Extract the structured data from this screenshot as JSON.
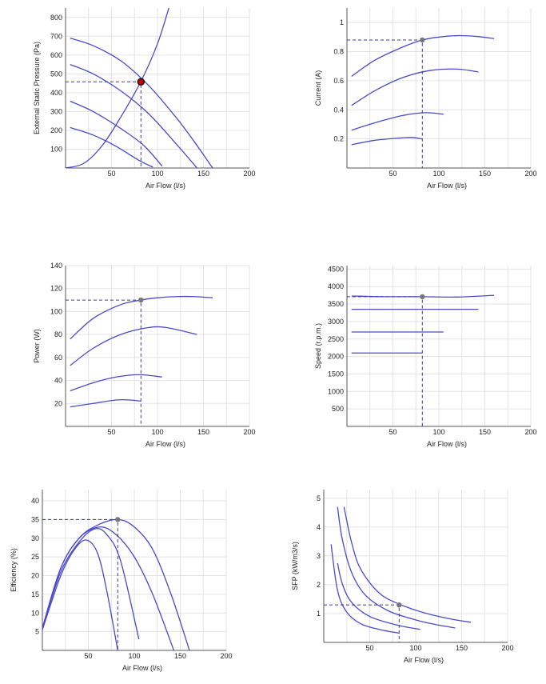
{
  "chart_data": [
    {
      "type": "line",
      "xlabel": "Air Flow (l/s)",
      "ylabel": "External Static Pressure (Pa)",
      "xticks": [
        50,
        100,
        150,
        200
      ],
      "yticks": [
        100,
        200,
        300,
        400,
        500,
        600,
        700,
        800
      ],
      "xlim": [
        0,
        200
      ],
      "ylim": [
        0,
        850
      ],
      "series": [
        {
          "x": [
            5,
            30,
            60,
            90,
            120,
            140,
            160
          ],
          "y": [
            690,
            650,
            570,
            440,
            270,
            140,
            0
          ]
        },
        {
          "x": [
            5,
            30,
            60,
            90,
            120,
            143
          ],
          "y": [
            550,
            500,
            410,
            290,
            130,
            0
          ]
        },
        {
          "x": [
            5,
            30,
            60,
            85,
            105
          ],
          "y": [
            355,
            300,
            210,
            120,
            10
          ]
        },
        {
          "x": [
            5,
            30,
            55,
            80,
            95
          ],
          "y": [
            215,
            175,
            115,
            40,
            5
          ]
        },
        {
          "x": [
            0,
            20,
            40,
            60,
            82,
            100,
            113
          ],
          "y": [
            0,
            25,
            120,
            270,
            460,
            660,
            860
          ]
        }
      ],
      "operating_point": {
        "x": 82,
        "y": 458
      },
      "marker_color": "#cc0000"
    },
    {
      "type": "line",
      "xlabel": "Air Flow (l/s)",
      "ylabel": "Current (A)",
      "xticks": [
        50,
        100,
        150,
        200
      ],
      "yticks": [
        0.2,
        0.4,
        0.6,
        0.8,
        1
      ],
      "xlim": [
        0,
        200
      ],
      "ylim": [
        0,
        1.1
      ],
      "series": [
        {
          "x": [
            5,
            30,
            60,
            82,
            100,
            120,
            140,
            160
          ],
          "y": [
            0.63,
            0.74,
            0.83,
            0.88,
            0.9,
            0.91,
            0.905,
            0.89
          ]
        },
        {
          "x": [
            5,
            30,
            60,
            90,
            120,
            143
          ],
          "y": [
            0.43,
            0.53,
            0.62,
            0.67,
            0.68,
            0.66
          ]
        },
        {
          "x": [
            5,
            30,
            60,
            85,
            105
          ],
          "y": [
            0.26,
            0.31,
            0.36,
            0.38,
            0.37
          ]
        },
        {
          "x": [
            5,
            30,
            55,
            70,
            82
          ],
          "y": [
            0.16,
            0.19,
            0.205,
            0.21,
            0.2
          ]
        }
      ],
      "operating_point": {
        "x": 82,
        "y": 0.88
      },
      "marker_color": "#777777"
    },
    {
      "type": "line",
      "xlabel": "Air Flow (l/s)",
      "ylabel": "Power (W)",
      "xticks": [
        50,
        100,
        150,
        200
      ],
      "yticks": [
        20,
        40,
        60,
        80,
        100,
        120,
        140
      ],
      "xlim": [
        0,
        200
      ],
      "ylim": [
        0,
        140
      ],
      "series": [
        {
          "x": [
            5,
            30,
            60,
            82,
            100,
            120,
            140,
            160
          ],
          "y": [
            76,
            94,
            106,
            110,
            112,
            113,
            113,
            112
          ]
        },
        {
          "x": [
            5,
            30,
            60,
            90,
            110,
            143
          ],
          "y": [
            53,
            68,
            80,
            86,
            86,
            80
          ]
        },
        {
          "x": [
            5,
            30,
            55,
            80,
            105
          ],
          "y": [
            31,
            38,
            43,
            45,
            43
          ]
        },
        {
          "x": [
            5,
            30,
            55,
            70,
            82
          ],
          "y": [
            17,
            20,
            23,
            23,
            22
          ]
        }
      ],
      "operating_point": {
        "x": 82,
        "y": 110
      },
      "marker_color": "#777777"
    },
    {
      "type": "line",
      "xlabel": "Air Flow (l/s)",
      "ylabel": "Speed (r.p.m.)",
      "xticks": [
        50,
        100,
        150,
        200
      ],
      "yticks": [
        500,
        1000,
        1500,
        2000,
        2500,
        3000,
        3500,
        4000,
        4500
      ],
      "xlim": [
        0,
        200
      ],
      "ylim": [
        0,
        4600
      ],
      "series": [
        {
          "x": [
            5,
            40,
            82,
            120,
            160
          ],
          "y": [
            3730,
            3710,
            3710,
            3700,
            3750
          ]
        },
        {
          "x": [
            5,
            143
          ],
          "y": [
            3350,
            3350
          ]
        },
        {
          "x": [
            5,
            105
          ],
          "y": [
            2700,
            2700
          ]
        },
        {
          "x": [
            5,
            82
          ],
          "y": [
            2100,
            2100
          ]
        }
      ],
      "operating_point": {
        "x": 82,
        "y": 3710
      },
      "marker_color": "#777777"
    },
    {
      "type": "line",
      "xlabel": "Air Flow (l/s)",
      "ylabel": "Efficiency (%)",
      "xticks": [
        50,
        100,
        150,
        200
      ],
      "yticks": [
        5,
        10,
        15,
        20,
        25,
        30,
        35,
        40
      ],
      "xlim": [
        0,
        200
      ],
      "ylim": [
        0,
        43
      ],
      "series": [
        {
          "x": [
            0,
            20,
            40,
            60,
            82,
            100,
            120,
            140,
            160
          ],
          "y": [
            6,
            22,
            30,
            33.5,
            35,
            33,
            27,
            15,
            0
          ]
        },
        {
          "x": [
            0,
            20,
            40,
            62,
            80,
            100,
            120,
            143
          ],
          "y": [
            6,
            22,
            30,
            33,
            31,
            25,
            15,
            0
          ]
        },
        {
          "x": [
            0,
            20,
            40,
            57,
            70,
            85,
            105
          ],
          "y": [
            6,
            21,
            29,
            32.5,
            31,
            24,
            3
          ]
        },
        {
          "x": [
            0,
            20,
            35,
            48,
            60,
            70,
            82
          ],
          "y": [
            5.5,
            20,
            27,
            29.5,
            26,
            16,
            0
          ]
        }
      ],
      "operating_point": {
        "x": 82,
        "y": 35
      },
      "marker_color": "#777777"
    },
    {
      "type": "line",
      "xlabel": "Air Flow (l/s)",
      "ylabel": "SFP (kW/m3/s)",
      "xticks": [
        50,
        100,
        150,
        200
      ],
      "yticks": [
        1,
        2,
        3,
        4,
        5
      ],
      "xlim": [
        0,
        200
      ],
      "ylim": [
        0,
        5.3
      ],
      "series": [
        {
          "x": [
            22,
            30,
            40,
            60,
            82,
            110,
            140,
            160
          ],
          "y": [
            4.7,
            3.5,
            2.55,
            1.72,
            1.33,
            1.02,
            0.8,
            0.7
          ]
        },
        {
          "x": [
            15,
            20,
            30,
            45,
            70,
            100,
            120,
            143
          ],
          "y": [
            4.7,
            3.6,
            2.45,
            1.65,
            1.1,
            0.78,
            0.63,
            0.5
          ]
        },
        {
          "x": [
            15,
            20,
            30,
            50,
            80,
            105
          ],
          "y": [
            2.75,
            2.05,
            1.4,
            0.9,
            0.6,
            0.45
          ]
        },
        {
          "x": [
            8,
            15,
            25,
            40,
            60,
            82
          ],
          "y": [
            3.4,
            1.8,
            1.05,
            0.65,
            0.45,
            0.32
          ]
        }
      ],
      "operating_point": {
        "x": 82,
        "y": 1.3
      },
      "marker_color": "#777777"
    }
  ]
}
